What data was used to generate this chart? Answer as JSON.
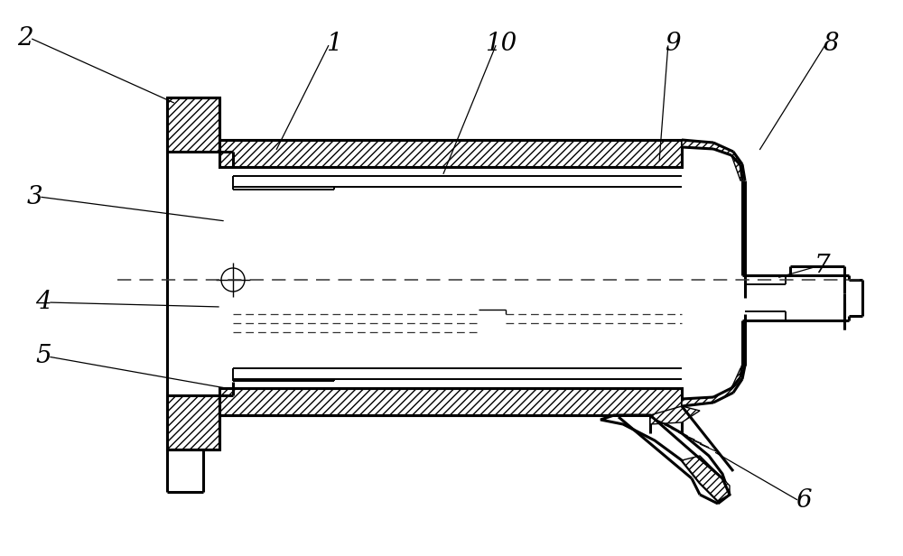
{
  "bg_color": "#ffffff",
  "lw_thick": 2.2,
  "lw_med": 1.4,
  "lw_thin": 1.0,
  "figsize": [
    10.0,
    6.16
  ],
  "dpi": 100,
  "annotations": [
    [
      "2",
      28,
      42,
      195,
      115
    ],
    [
      "1",
      370,
      48,
      305,
      168
    ],
    [
      "10",
      555,
      48,
      490,
      195
    ],
    [
      "9",
      745,
      48,
      730,
      180
    ],
    [
      "8",
      920,
      48,
      840,
      168
    ],
    [
      "3",
      38,
      218,
      250,
      245
    ],
    [
      "4",
      48,
      335,
      245,
      340
    ],
    [
      "5",
      48,
      395,
      250,
      430
    ],
    [
      "7",
      910,
      295,
      860,
      308
    ],
    [
      "6",
      890,
      555,
      790,
      500
    ]
  ]
}
